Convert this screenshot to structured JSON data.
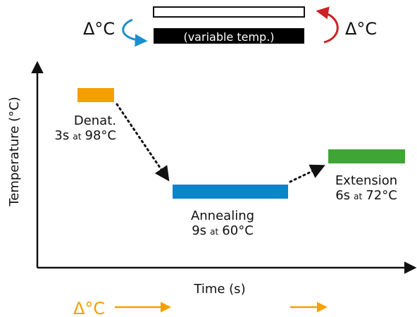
{
  "top": {
    "delta_left": "Δ°C",
    "delta_right": "Δ°C",
    "bar_label": "(variable temp.)",
    "left_arrow_color": "#1a8fd0",
    "right_arrow_color": "#cc2222"
  },
  "axes": {
    "ylabel": "Temperature (°C)",
    "xlabel": "Time (s)"
  },
  "steps": [
    {
      "name": "Denat.",
      "duration": "3s",
      "at": "at",
      "temp": "98°C",
      "color": "#f5a000"
    },
    {
      "name": "Annealing",
      "duration": "9s",
      "at": "at",
      "temp": "60°C",
      "color": "#0a86c8"
    },
    {
      "name": "Extension",
      "duration": "6s",
      "at": "at",
      "temp": "72°C",
      "color": "#3fa535"
    }
  ],
  "bottom": {
    "delta": "Δ°C",
    "color": "#f5a000"
  }
}
